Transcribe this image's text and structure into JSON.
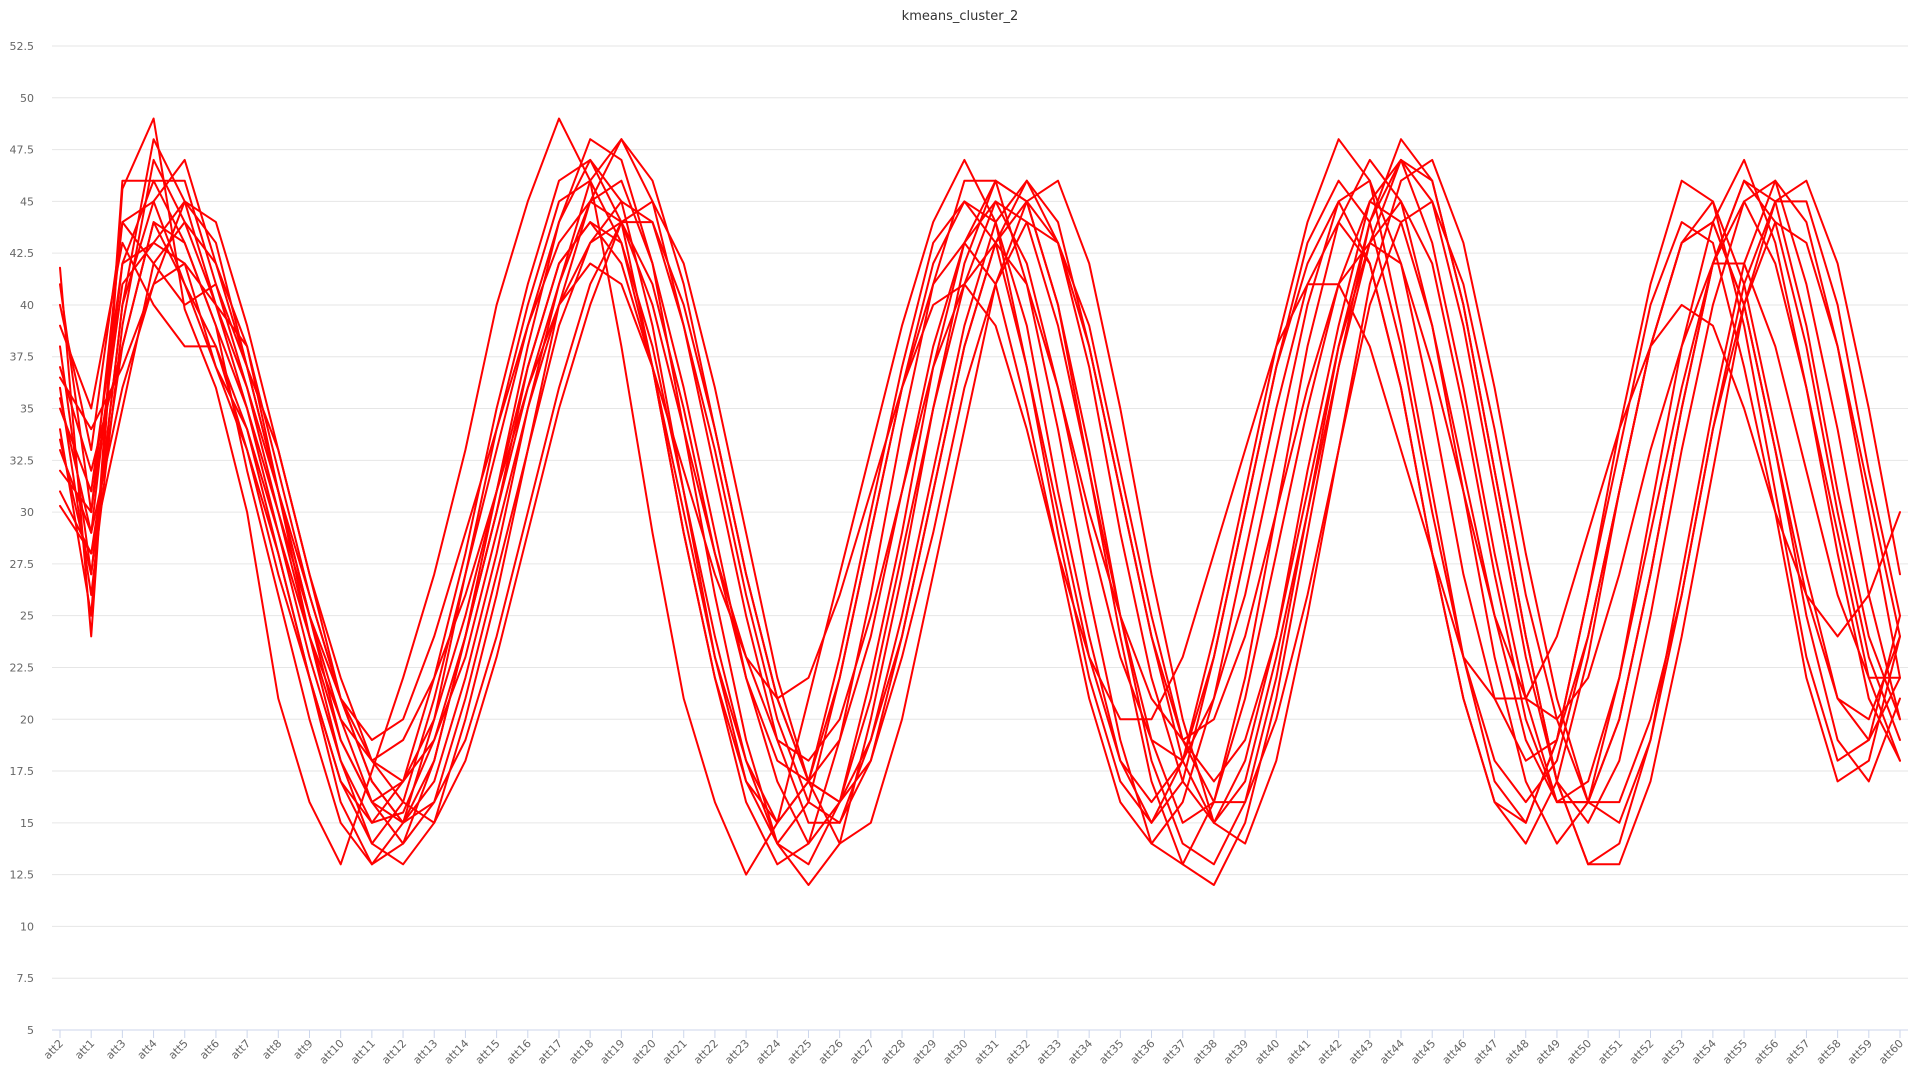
{
  "chart_data": {
    "type": "line",
    "title": "kmeans_cluster_2",
    "xlabel": "",
    "ylabel": "",
    "ylim": [
      5,
      52.5
    ],
    "y_ticks": [
      5,
      7.5,
      10,
      12.5,
      15,
      17.5,
      20,
      22.5,
      25,
      27.5,
      30,
      32.5,
      35,
      37.5,
      40,
      42.5,
      45,
      47.5,
      50,
      52.5
    ],
    "y_tick_labels": [
      "5",
      "7.5",
      "10",
      "12.5",
      "15",
      "17.5",
      "20",
      "22.5",
      "25",
      "27.5",
      "30",
      "32.5",
      "35",
      "37.5",
      "40",
      "42.5",
      "45",
      "47.5",
      "50",
      "52.5"
    ],
    "grid": true,
    "legend": "none",
    "series_color": "#ff0000",
    "categories": [
      "att2",
      "att1",
      "att3",
      "att4",
      "att5",
      "att6",
      "att7",
      "att8",
      "att9",
      "att10",
      "att11",
      "att12",
      "att13",
      "att14",
      "att15",
      "att16",
      "att17",
      "att18",
      "att19",
      "att20",
      "att21",
      "att22",
      "att23",
      "att24",
      "att25",
      "att26",
      "att27",
      "att28",
      "att29",
      "att30",
      "att31",
      "att32",
      "att33",
      "att34",
      "att35",
      "att36",
      "att37",
      "att38",
      "att39",
      "att40",
      "att41",
      "att42",
      "att43",
      "att44",
      "att45",
      "att46",
      "att47",
      "att48",
      "att49",
      "att50",
      "att51",
      "att52",
      "att53",
      "att54",
      "att55",
      "att56",
      "att57",
      "att58",
      "att59",
      "att60"
    ],
    "series": [
      {
        "values": [
          41.8,
          24.0,
          45.6,
          49.0,
          39.8,
          36.0,
          30.0,
          21.0,
          16.0,
          13.0,
          17.5,
          22.0,
          27.0,
          33.0,
          40.0,
          45.0,
          49.0,
          46.0,
          38.0,
          29.0,
          21.0,
          16.0,
          12.5,
          15.0,
          21.0,
          27.0,
          33.0,
          39.0,
          44.0,
          47.0,
          44.0,
          37.0,
          29.0,
          22.0,
          17.0,
          15.0,
          18.0,
          24.0,
          31.0,
          38.0,
          44.0,
          48.0,
          46.0,
          39.0,
          31.0,
          23.0,
          17.0,
          15.0,
          19.0,
          26.0,
          34.0,
          41.0,
          46.0,
          45.0,
          39.0,
          31.0,
          23.0,
          18.0,
          19.0,
          25.0
        ]
      },
      {
        "values": [
          30.3,
          28.0,
          38.0,
          44.0,
          41.0,
          38.0,
          33.0,
          27.0,
          22.0,
          17.0,
          14.0,
          16.0,
          21.0,
          27.0,
          33.0,
          39.0,
          44.0,
          47.0,
          45.0,
          39.0,
          31.0,
          23.0,
          17.0,
          14.0,
          16.0,
          22.0,
          29.0,
          36.0,
          42.0,
          45.0,
          44.0,
          39.0,
          31.0,
          24.0,
          18.0,
          15.0,
          17.0,
          23.0,
          30.0,
          37.0,
          42.0,
          45.0,
          42.0,
          36.0,
          28.0,
          21.0,
          16.0,
          15.0,
          19.0,
          26.0,
          33.0,
          40.0,
          44.0,
          43.0,
          37.0,
          30.0,
          22.0,
          17.0,
          18.0,
          24.0
        ]
      },
      {
        "values": [
          35.0,
          31.0,
          42.0,
          46.0,
          43.0,
          39.0,
          35.0,
          29.0,
          23.0,
          18.0,
          15.0,
          15.5,
          19.0,
          24.0,
          30.0,
          36.0,
          41.0,
          45.0,
          46.0,
          42.0,
          36.0,
          29.0,
          22.0,
          17.0,
          14.0,
          16.0,
          21.0,
          28.0,
          35.0,
          41.0,
          45.0,
          44.0,
          39.0,
          32.0,
          25.0,
          19.0,
          15.0,
          16.0,
          21.0,
          28.0,
          35.0,
          41.0,
          45.0,
          44.0,
          39.0,
          32.0,
          25.0,
          19.0,
          16.0,
          17.0,
          22.0,
          29.0,
          36.0,
          42.0,
          45.0,
          42.0,
          36.0,
          29.0,
          22.0,
          18.0
        ]
      },
      {
        "values": [
          38.0,
          27.0,
          40.0,
          45.0,
          47.0,
          42.0,
          37.0,
          31.0,
          25.0,
          20.0,
          16.0,
          14.0,
          16.0,
          21.0,
          27.0,
          33.0,
          39.0,
          43.0,
          45.0,
          44.0,
          39.0,
          33.0,
          26.0,
          20.0,
          16.0,
          15.0,
          18.0,
          24.0,
          31.0,
          38.0,
          43.0,
          46.0,
          44.0,
          38.0,
          31.0,
          24.0,
          18.0,
          15.0,
          17.0,
          23.0,
          30.0,
          37.0,
          43.0,
          47.0,
          45.0,
          39.0,
          31.0,
          23.0,
          17.0,
          15.0,
          18.0,
          25.0,
          33.0,
          40.0,
          45.0,
          46.0,
          41.0,
          34.0,
          26.0,
          20.0
        ]
      },
      {
        "values": [
          33.0,
          29.0,
          36.0,
          41.0,
          45.0,
          44.0,
          39.0,
          33.0,
          27.0,
          21.0,
          17.0,
          15.0,
          17.0,
          22.0,
          28.0,
          35.0,
          41.0,
          46.0,
          48.0,
          45.0,
          39.0,
          32.0,
          25.0,
          19.0,
          15.0,
          15.0,
          19.0,
          25.0,
          32.0,
          39.0,
          44.0,
          46.0,
          43.0,
          37.0,
          29.0,
          22.0,
          17.0,
          15.0,
          18.0,
          24.0,
          32.0,
          39.0,
          45.0,
          47.0,
          43.0,
          36.0,
          28.0,
          21.0,
          16.0,
          16.0,
          20.0,
          27.0,
          35.0,
          42.0,
          46.0,
          44.0,
          38.0,
          30.0,
          23.0,
          19.0
        ]
      },
      {
        "values": [
          40.0,
          33.0,
          44.0,
          42.0,
          40.0,
          41.0,
          36.0,
          30.0,
          24.0,
          19.0,
          16.0,
          17.0,
          20.0,
          25.0,
          31.0,
          37.0,
          42.0,
          44.0,
          42.0,
          37.0,
          30.0,
          23.0,
          18.0,
          15.0,
          17.0,
          22.0,
          29.0,
          36.0,
          41.0,
          43.0,
          41.0,
          35.0,
          28.0,
          21.0,
          16.0,
          14.0,
          16.0,
          21.0,
          28.0,
          35.0,
          41.0,
          44.0,
          42.0,
          36.0,
          28.0,
          21.0,
          16.0,
          14.0,
          17.0,
          23.0,
          31.0,
          38.0,
          43.0,
          44.0,
          40.0,
          33.0,
          25.0,
          19.0,
          17.0,
          21.0
        ]
      },
      {
        "values": [
          36.0,
          26.0,
          39.0,
          47.0,
          44.0,
          40.0,
          38.0,
          32.0,
          26.0,
          21.0,
          18.0,
          17.0,
          19.0,
          23.0,
          29.0,
          35.0,
          40.0,
          43.0,
          44.0,
          41.0,
          35.0,
          28.0,
          22.0,
          18.0,
          17.0,
          19.0,
          24.0,
          31.0,
          38.0,
          43.0,
          45.0,
          42.0,
          36.0,
          29.0,
          23.0,
          19.0,
          18.0,
          21.0,
          26.0,
          33.0,
          40.0,
          45.0,
          46.0,
          42.0,
          35.0,
          27.0,
          21.0,
          18.0,
          19.0,
          24.0,
          31.0,
          38.0,
          43.0,
          45.0,
          41.0,
          34.0,
          27.0,
          21.0,
          19.0,
          22.0
        ]
      },
      {
        "values": [
          32.0,
          30.0,
          41.0,
          43.0,
          42.0,
          37.0,
          34.0,
          28.0,
          22.0,
          16.0,
          13.0,
          14.0,
          18.0,
          24.0,
          31.0,
          38.0,
          44.0,
          48.0,
          47.0,
          42.0,
          34.0,
          26.0,
          19.0,
          14.0,
          12.0,
          14.0,
          20.0,
          27.0,
          35.0,
          42.0,
          46.0,
          45.0,
          40.0,
          33.0,
          25.0,
          18.0,
          14.0,
          13.0,
          16.0,
          22.0,
          30.0,
          38.0,
          44.0,
          48.0,
          46.0,
          40.0,
          32.0,
          24.0,
          17.0,
          13.0,
          14.0,
          19.0,
          27.0,
          35.0,
          42.0,
          46.0,
          44.0,
          38.0,
          30.0,
          22.0
        ]
      },
      {
        "values": [
          39.0,
          35.0,
          43.0,
          40.0,
          38.0,
          38.0,
          34.0,
          29.0,
          24.0,
          20.0,
          18.0,
          19.0,
          22.0,
          26.0,
          31.0,
          36.0,
          40.0,
          42.0,
          41.0,
          37.0,
          32.0,
          27.0,
          23.0,
          21.0,
          22.0,
          26.0,
          31.0,
          36.0,
          40.0,
          41.0,
          39.0,
          34.0,
          28.0,
          23.0,
          20.0,
          20.0,
          23.0,
          28.0,
          33.0,
          38.0,
          41.0,
          41.0,
          38.0,
          33.0,
          28.0,
          23.0,
          21.0,
          21.0,
          24.0,
          29.0,
          34.0,
          38.0,
          40.0,
          39.0,
          35.0,
          30.0,
          26.0,
          24.0,
          26.0,
          30.0
        ]
      },
      {
        "values": [
          34.0,
          25.0,
          46.0,
          46.0,
          46.0,
          41.0,
          37.0,
          33.0,
          27.0,
          22.0,
          18.0,
          16.0,
          15.0,
          18.0,
          23.0,
          29.0,
          35.0,
          40.0,
          44.0,
          45.0,
          42.0,
          36.0,
          29.0,
          22.0,
          17.0,
          14.0,
          15.0,
          20.0,
          27.0,
          34.0,
          41.0,
          45.0,
          46.0,
          42.0,
          35.0,
          27.0,
          20.0,
          15.0,
          14.0,
          18.0,
          25.0,
          33.0,
          41.0,
          46.0,
          47.0,
          43.0,
          36.0,
          28.0,
          21.0,
          16.0,
          15.0,
          19.0,
          26.0,
          34.0,
          41.0,
          45.0,
          45.0,
          40.0,
          32.0,
          25.0
        ]
      },
      {
        "values": [
          37.0,
          32.0,
          38.0,
          44.0,
          43.0,
          39.0,
          32.0,
          26.0,
          20.0,
          15.0,
          13.0,
          15.0,
          20.0,
          27.0,
          34.0,
          40.0,
          45.0,
          46.0,
          43.0,
          37.0,
          29.0,
          22.0,
          17.0,
          15.0,
          17.0,
          23.0,
          30.0,
          37.0,
          43.0,
          45.0,
          43.0,
          37.0,
          30.0,
          23.0,
          18.0,
          16.0,
          18.0,
          23.0,
          30.0,
          37.0,
          43.0,
          46.0,
          44.0,
          38.0,
          30.0,
          23.0,
          18.0,
          16.0,
          18.0,
          24.0,
          31.0,
          38.0,
          43.0,
          44.0,
          40.0,
          33.0,
          26.0,
          21.0,
          20.0,
          24.0
        ]
      },
      {
        "values": [
          31.0,
          28.0,
          35.0,
          42.0,
          44.0,
          42.0,
          38.0,
          31.0,
          24.0,
          18.0,
          14.0,
          13.0,
          15.0,
          20.0,
          26.0,
          33.0,
          40.0,
          45.0,
          48.0,
          46.0,
          41.0,
          34.0,
          27.0,
          21.0,
          17.0,
          16.0,
          19.0,
          24.0,
          31.0,
          38.0,
          43.0,
          45.0,
          43.0,
          38.0,
          31.0,
          24.0,
          19.0,
          17.0,
          19.0,
          24.0,
          31.0,
          38.0,
          43.0,
          45.0,
          42.0,
          35.0,
          27.0,
          20.0,
          16.0,
          16.0,
          20.0,
          27.0,
          35.0,
          42.0,
          46.0,
          45.0,
          39.0,
          31.0,
          24.0,
          20.0
        ]
      },
      {
        "values": [
          33.5,
          27.0,
          40.0,
          48.0,
          45.0,
          40.0,
          35.0,
          30.0,
          25.0,
          21.0,
          19.0,
          20.0,
          24.0,
          29.0,
          34.0,
          39.0,
          43.0,
          45.0,
          44.0,
          40.0,
          34.0,
          28.0,
          23.0,
          19.0,
          18.0,
          20.0,
          25.0,
          31.0,
          37.0,
          41.0,
          43.0,
          41.0,
          36.0,
          30.0,
          25.0,
          21.0,
          19.0,
          20.0,
          24.0,
          30.0,
          36.0,
          41.0,
          43.0,
          42.0,
          37.0,
          31.0,
          25.0,
          21.0,
          20.0,
          22.0,
          27.0,
          33.0,
          38.0,
          42.0,
          42.0,
          38.0,
          32.0,
          26.0,
          22.0,
          22.0
        ]
      },
      {
        "values": [
          41.0,
          30.0,
          44.0,
          45.0,
          41.0,
          37.0,
          33.0,
          28.0,
          22.0,
          17.0,
          15.0,
          17.0,
          22.0,
          28.0,
          35.0,
          41.0,
          46.0,
          47.0,
          44.0,
          37.0,
          29.0,
          22.0,
          16.0,
          13.0,
          14.0,
          19.0,
          26.0,
          34.0,
          41.0,
          46.0,
          46.0,
          41.0,
          34.0,
          26.0,
          19.0,
          14.0,
          13.0,
          16.0,
          22.0,
          30.0,
          38.0,
          44.0,
          47.0,
          45.0,
          39.0,
          31.0,
          23.0,
          17.0,
          14.0,
          16.0,
          22.0,
          30.0,
          38.0,
          44.0,
          47.0,
          43.0,
          36.0,
          28.0,
          21.0,
          18.0
        ]
      },
      {
        "values": [
          36.5,
          34.0,
          37.0,
          41.0,
          42.0,
          40.0,
          36.0,
          31.0,
          26.0,
          21.0,
          17.0,
          15.0,
          16.0,
          19.0,
          24.0,
          30.0,
          36.0,
          41.0,
          44.0,
          44.0,
          40.0,
          34.0,
          27.0,
          21.0,
          17.0,
          16.0,
          18.0,
          23.0,
          29.0,
          36.0,
          41.0,
          44.0,
          43.0,
          39.0,
          32.0,
          25.0,
          19.0,
          16.0,
          16.0,
          20.0,
          26.0,
          33.0,
          40.0,
          44.0,
          45.0,
          41.0,
          34.0,
          26.0,
          20.0,
          16.0,
          16.0,
          20.0,
          26.0,
          34.0,
          40.0,
          44.0,
          43.0,
          38.0,
          31.0,
          24.0
        ]
      },
      {
        "values": [
          35.5,
          29.0,
          42.0,
          43.0,
          45.0,
          43.0,
          37.0,
          31.0,
          25.0,
          19.0,
          16.0,
          15.0,
          18.0,
          24.0,
          30.0,
          37.0,
          42.0,
          44.0,
          43.0,
          38.0,
          31.0,
          24.0,
          18.0,
          14.0,
          13.0,
          16.0,
          22.0,
          29.0,
          37.0,
          43.0,
          46.0,
          45.0,
          40.0,
          32.0,
          24.0,
          17.0,
          13.0,
          12.0,
          15.0,
          21.0,
          29.0,
          37.0,
          44.0,
          47.0,
          46.0,
          40.0,
          32.0,
          24.0,
          17.0,
          13.0,
          13.0,
          17.0,
          24.0,
          32.0,
          40.0,
          45.0,
          46.0,
          42.0,
          35.0,
          27.0
        ]
      }
    ]
  }
}
